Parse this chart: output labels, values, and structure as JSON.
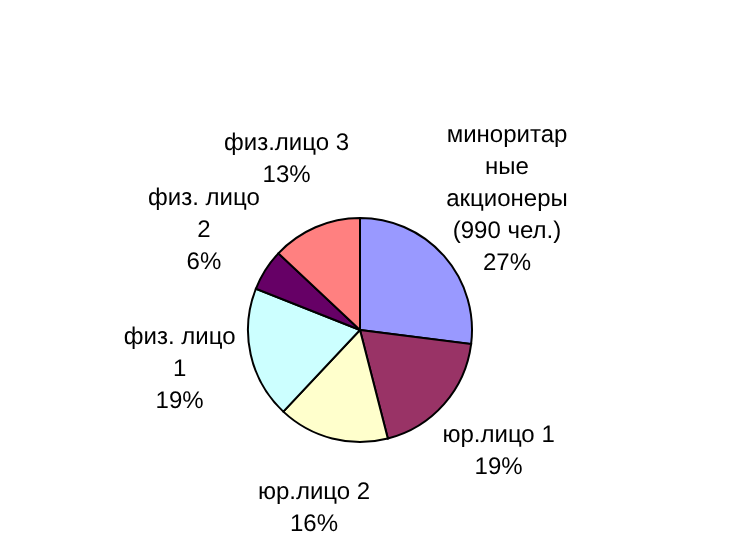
{
  "chart_data": {
    "type": "pie",
    "categories": [
      "миноритарные акционеры (990 чел.)",
      "юр.лицо 1",
      "юр.лицо 2",
      "физ. лицо 1",
      "физ. лицо 2",
      "физ.лицо 3"
    ],
    "values": [
      27,
      19,
      16,
      19,
      6,
      13
    ],
    "colors": [
      "#9999ff",
      "#993366",
      "#ffffcc",
      "#ccffff",
      "#660066",
      "#ff8080"
    ],
    "value_labels": [
      "27%",
      "19%",
      "16%",
      "19%",
      "6%",
      "13%"
    ],
    "legend": false
  }
}
